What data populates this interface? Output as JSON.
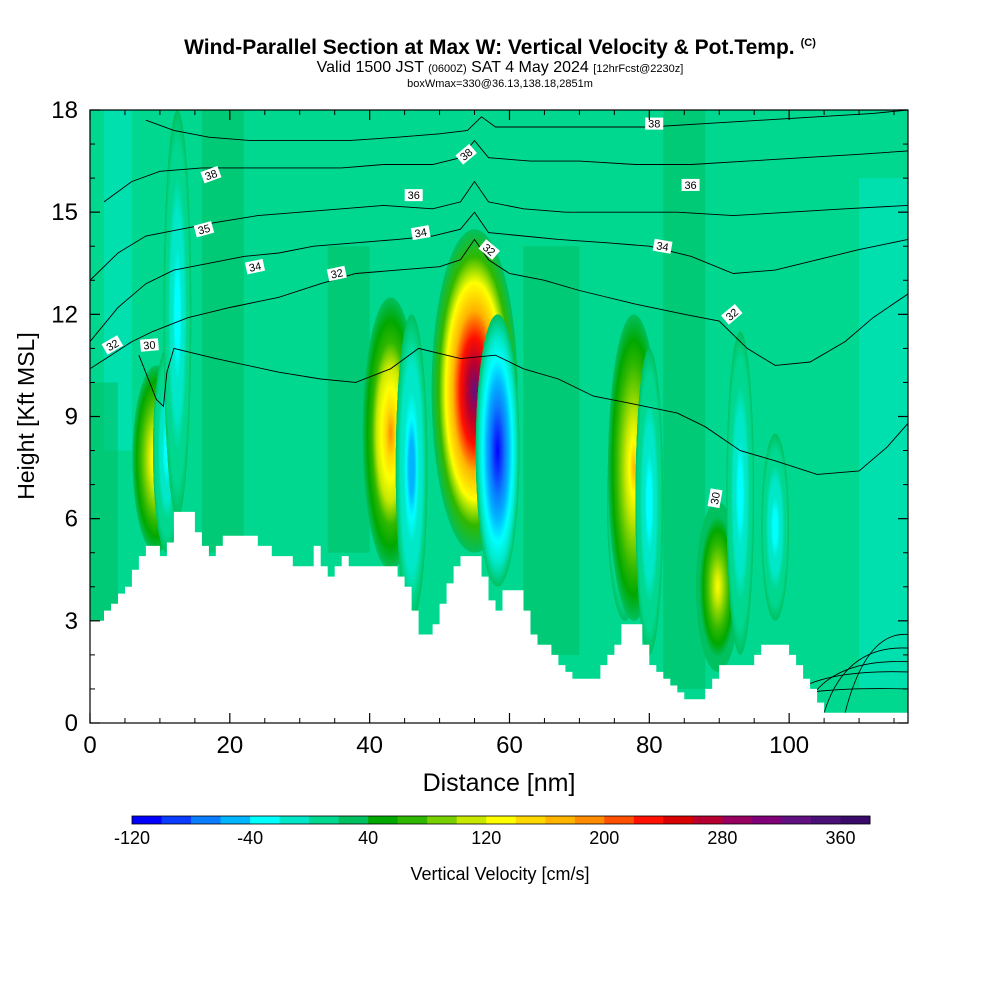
{
  "header": {
    "title": "Wind-Parallel Section at Max W: Vertical Velocity & Pot.Temp.",
    "copyright": "(C)",
    "valid_prefix": "Valid 1500 JST",
    "valid_utc": "(0600Z)",
    "valid_date": "SAT 4 May 2024",
    "forecast": "[12hrFcst@2230z]",
    "box_info": "boxWmax=330@36.13,138.18,2851m"
  },
  "chart_data": {
    "type": "heatmap",
    "xlabel": "Distance [nm]",
    "ylabel": "Height [Kft MSL]",
    "xlim": [
      0,
      117
    ],
    "ylim": [
      0,
      18
    ],
    "x_ticks": [
      0,
      20,
      40,
      60,
      80,
      100
    ],
    "y_ticks": [
      0,
      3,
      6,
      9,
      12,
      15,
      18
    ],
    "colorbar": {
      "label": "Vertical Velocity [cm/s]",
      "min": -120,
      "max": 380,
      "step": 20,
      "tick_labels": [
        -120,
        -40,
        40,
        120,
        200,
        280,
        360
      ],
      "colors": [
        "#0000ff",
        "#0a3cff",
        "#0a7cff",
        "#00b4ff",
        "#00ffff",
        "#00e8c8",
        "#00d890",
        "#00c060",
        "#00a800",
        "#30b800",
        "#78d000",
        "#c8e800",
        "#ffff00",
        "#ffd800",
        "#ffb400",
        "#ff8c00",
        "#ff5000",
        "#ff1000",
        "#d80000",
        "#b80030",
        "#980060",
        "#800078",
        "#601080",
        "#4a1078",
        "#3a0a6a"
      ]
    },
    "vertical_velocity_cells": [
      {
        "x": 9.5,
        "y_bottom": 5,
        "y_top": 10.5,
        "w_max": 140
      },
      {
        "x": 11,
        "y_bottom": 5,
        "y_top": 11,
        "w_max": -40
      },
      {
        "x": 43,
        "y_bottom": 4.5,
        "y_top": 12.5,
        "w_max": 180
      },
      {
        "x": 46,
        "y_bottom": 3,
        "y_top": 12,
        "w_max": -60
      },
      {
        "x": 55,
        "y_bottom": 5,
        "y_top": 14.5,
        "w_max": 330
      },
      {
        "x": 58.3,
        "y_bottom": 4,
        "y_top": 12,
        "w_max": -120
      },
      {
        "x": 76.5,
        "y_bottom": 3,
        "y_top": 10,
        "w_max": -80
      },
      {
        "x": 77.8,
        "y_bottom": 3,
        "y_top": 12,
        "w_max": 160
      },
      {
        "x": 80,
        "y_bottom": 2,
        "y_top": 11,
        "w_max": -40
      },
      {
        "x": 89.8,
        "y_bottom": 1.5,
        "y_top": 6.5,
        "w_max": 120
      },
      {
        "x": 93,
        "y_bottom": 2,
        "y_top": 11.5,
        "w_max": -40
      },
      {
        "x": 98,
        "y_bottom": 3,
        "y_top": 8.5,
        "w_max": -40
      },
      {
        "x": 12.5,
        "y_bottom": 6,
        "y_top": 18,
        "w_max": -40
      }
    ],
    "terrain": [
      [
        0,
        3
      ],
      [
        1,
        3
      ],
      [
        2,
        3.3
      ],
      [
        3,
        3.5
      ],
      [
        4,
        3.8
      ],
      [
        5,
        4
      ],
      [
        6,
        4.5
      ],
      [
        7,
        4.9
      ],
      [
        8,
        5.2
      ],
      [
        9,
        5.2
      ],
      [
        10,
        4.9
      ],
      [
        11,
        5.3
      ],
      [
        12,
        6.2
      ],
      [
        14,
        6.2
      ],
      [
        15,
        5.6
      ],
      [
        16,
        5.2
      ],
      [
        17,
        4.9
      ],
      [
        18,
        5.2
      ],
      [
        19,
        5.5
      ],
      [
        20,
        5.5
      ],
      [
        21,
        5.5
      ],
      [
        22,
        5.5
      ],
      [
        24,
        5.2
      ],
      [
        25,
        5.2
      ],
      [
        26,
        4.9
      ],
      [
        28,
        4.9
      ],
      [
        29,
        4.6
      ],
      [
        31,
        4.6
      ],
      [
        32,
        5.2
      ],
      [
        33,
        4.6
      ],
      [
        34,
        4.3
      ],
      [
        35,
        4.6
      ],
      [
        36,
        4.9
      ],
      [
        37,
        4.6
      ],
      [
        38,
        4.6
      ],
      [
        39,
        4.6
      ],
      [
        40,
        4.6
      ],
      [
        41,
        4.6
      ],
      [
        42,
        4.6
      ],
      [
        43,
        4.6
      ],
      [
        44,
        4.3
      ],
      [
        45,
        4
      ],
      [
        46,
        3.3
      ],
      [
        47,
        2.6
      ],
      [
        48,
        2.6
      ],
      [
        49,
        2.9
      ],
      [
        50,
        3.5
      ],
      [
        51,
        4.1
      ],
      [
        52,
        4.6
      ],
      [
        53,
        4.9
      ],
      [
        55,
        4.9
      ],
      [
        56,
        4.3
      ],
      [
        57,
        3.6
      ],
      [
        58,
        3.3
      ],
      [
        59,
        3.9
      ],
      [
        61,
        3.9
      ],
      [
        62,
        3.3
      ],
      [
        63,
        2.6
      ],
      [
        64,
        2.3
      ],
      [
        65,
        2.3
      ],
      [
        66,
        2
      ],
      [
        67,
        1.7
      ],
      [
        68,
        1.5
      ],
      [
        69,
        1.3
      ],
      [
        70,
        1.3
      ],
      [
        72,
        1.3
      ],
      [
        73,
        1.7
      ],
      [
        74,
        2
      ],
      [
        75,
        2.3
      ],
      [
        76,
        2.9
      ],
      [
        78,
        2.9
      ],
      [
        79,
        2.3
      ],
      [
        80,
        1.7
      ],
      [
        81,
        1.5
      ],
      [
        82,
        1.3
      ],
      [
        83,
        1.1
      ],
      [
        84,
        0.9
      ],
      [
        85,
        0.7
      ],
      [
        86,
        0.7
      ],
      [
        87,
        0.7
      ],
      [
        88,
        1.0
      ],
      [
        89,
        1.3
      ],
      [
        90,
        1.7
      ],
      [
        91,
        1.7
      ],
      [
        92,
        1.7
      ],
      [
        93,
        1.7
      ],
      [
        94,
        1.7
      ],
      [
        95,
        2
      ],
      [
        96,
        2.3
      ],
      [
        99,
        2.3
      ],
      [
        100,
        2
      ],
      [
        101,
        1.7
      ],
      [
        102,
        1.3
      ],
      [
        103,
        1
      ],
      [
        104,
        0.6
      ],
      [
        105,
        0.3
      ],
      [
        117,
        0.3
      ]
    ],
    "theta_contours": [
      {
        "label": "30",
        "points": [
          [
            7,
            10.8
          ],
          [
            9.5,
            9.5
          ],
          [
            10.5,
            9.3
          ],
          [
            11,
            10.3
          ],
          [
            12,
            11
          ],
          [
            18,
            10.7
          ],
          [
            27,
            10.3
          ],
          [
            33,
            10.1
          ],
          [
            38,
            10
          ],
          [
            43,
            10.4
          ],
          [
            47,
            11
          ],
          [
            53,
            10.7
          ],
          [
            58,
            10.8
          ],
          [
            62,
            10.4
          ],
          [
            67,
            10.1
          ],
          [
            72,
            9.6
          ],
          [
            77,
            9.4
          ],
          [
            84,
            9.1
          ],
          [
            88,
            8.7
          ],
          [
            93,
            8
          ],
          [
            98,
            7.7
          ],
          [
            104,
            7.3
          ],
          [
            110,
            7.4
          ],
          [
            114,
            8.1
          ],
          [
            117,
            8.8
          ]
        ]
      },
      {
        "label": "32",
        "points": [
          [
            0,
            10.4
          ],
          [
            3,
            10.8
          ],
          [
            6,
            11.2
          ],
          [
            9,
            11.5
          ],
          [
            14,
            11.9
          ],
          [
            20,
            12.2
          ],
          [
            27,
            12.5
          ],
          [
            33,
            12.9
          ],
          [
            38,
            13.2
          ],
          [
            44,
            13.3
          ],
          [
            50,
            13.4
          ],
          [
            53,
            13.6
          ],
          [
            55,
            14.2
          ],
          [
            57,
            13.6
          ],
          [
            60,
            13.2
          ],
          [
            65,
            13
          ],
          [
            70,
            12.7
          ],
          [
            78,
            12.3
          ],
          [
            85,
            12
          ],
          [
            90,
            11.8
          ],
          [
            94,
            11
          ],
          [
            98,
            10.5
          ],
          [
            103,
            10.6
          ],
          [
            108,
            11.2
          ],
          [
            112,
            11.9
          ],
          [
            117,
            12.6
          ]
        ]
      },
      {
        "label": "34",
        "points": [
          [
            0,
            11.2
          ],
          [
            4,
            12.2
          ],
          [
            8,
            12.9
          ],
          [
            12,
            13.3
          ],
          [
            17,
            13.5
          ],
          [
            22,
            13.7
          ],
          [
            27,
            13.8
          ],
          [
            32,
            14
          ],
          [
            38,
            14.1
          ],
          [
            44,
            14.2
          ],
          [
            49,
            14.3
          ],
          [
            53,
            14.5
          ],
          [
            55,
            15
          ],
          [
            57,
            14.4
          ],
          [
            62,
            14.3
          ],
          [
            67,
            14.2
          ],
          [
            74,
            14.1
          ],
          [
            80,
            14
          ],
          [
            86,
            13.7
          ],
          [
            92,
            13.2
          ],
          [
            98,
            13.3
          ],
          [
            104,
            13.6
          ],
          [
            110,
            13.9
          ],
          [
            117,
            14.2
          ]
        ]
      },
      {
        "label": "35",
        "points": [
          [
            0,
            13
          ],
          [
            4,
            13.8
          ],
          [
            8,
            14.3
          ],
          [
            13,
            14.5
          ],
          [
            18,
            14.7
          ],
          [
            24,
            14.9
          ],
          [
            30,
            15
          ],
          [
            36,
            15.1
          ],
          [
            42,
            15.2
          ],
          [
            49,
            15.1
          ],
          [
            53,
            15.3
          ],
          [
            55,
            15.9
          ],
          [
            57,
            15.3
          ],
          [
            62,
            15.1
          ],
          [
            68,
            15
          ],
          [
            76,
            15
          ],
          [
            84,
            15
          ],
          [
            92,
            14.9
          ],
          [
            100,
            15
          ],
          [
            108,
            15.1
          ],
          [
            117,
            15.2
          ]
        ]
      },
      {
        "label": "36",
        "points": [
          [
            2,
            15.3
          ],
          [
            6,
            15.9
          ],
          [
            10,
            16.2
          ],
          [
            16,
            16.3
          ],
          [
            22,
            16.3
          ],
          [
            29,
            16.3
          ],
          [
            36,
            16.3
          ],
          [
            42,
            16.4
          ],
          [
            49,
            16.4
          ],
          [
            53,
            16.6
          ],
          [
            55,
            17.1
          ],
          [
            57,
            16.6
          ],
          [
            63,
            16.5
          ],
          [
            70,
            16.5
          ],
          [
            78,
            16.4
          ],
          [
            86,
            16.4
          ],
          [
            94,
            16.5
          ],
          [
            102,
            16.6
          ],
          [
            110,
            16.7
          ],
          [
            117,
            16.8
          ]
        ]
      },
      {
        "label": "38",
        "points": [
          [
            8,
            17.7
          ],
          [
            12,
            17.4
          ],
          [
            17,
            17.2
          ],
          [
            23,
            17.1
          ],
          [
            30,
            17.1
          ],
          [
            37,
            17.1
          ],
          [
            44,
            17.2
          ],
          [
            50,
            17.3
          ],
          [
            54,
            17.4
          ],
          [
            56,
            17.8
          ],
          [
            58,
            17.5
          ],
          [
            64,
            17.5
          ],
          [
            72,
            17.5
          ],
          [
            80,
            17.5
          ],
          [
            88,
            17.6
          ],
          [
            96,
            17.7
          ],
          [
            104,
            17.8
          ],
          [
            112,
            17.9
          ],
          [
            117,
            18
          ]
        ]
      }
    ],
    "contour_labels": [
      {
        "text": "32",
        "x": 3.2,
        "y": 11.1,
        "angle": -30
      },
      {
        "text": "30",
        "x": 8.5,
        "y": 11.1,
        "angle": -5
      },
      {
        "text": "38",
        "x": 17.3,
        "y": 16.1,
        "angle": -20
      },
      {
        "text": "35",
        "x": 16.3,
        "y": 14.5,
        "angle": -15
      },
      {
        "text": "34",
        "x": 23.6,
        "y": 13.4,
        "angle": -12
      },
      {
        "text": "32",
        "x": 35.3,
        "y": 13.2,
        "angle": -12
      },
      {
        "text": "36",
        "x": 46.3,
        "y": 15.5,
        "angle": 0
      },
      {
        "text": "34",
        "x": 47.3,
        "y": 14.4,
        "angle": -10
      },
      {
        "text": "38",
        "x": 53.8,
        "y": 16.7,
        "angle": -40
      },
      {
        "text": "32",
        "x": 57.1,
        "y": 13.9,
        "angle": 40
      },
      {
        "text": "38",
        "x": 80.7,
        "y": 17.6,
        "angle": 0
      },
      {
        "text": "36",
        "x": 85.9,
        "y": 15.8,
        "angle": 0
      },
      {
        "text": "34",
        "x": 81.9,
        "y": 14,
        "angle": 10
      },
      {
        "text": "32",
        "x": 91.8,
        "y": 12,
        "angle": -40
      },
      {
        "text": "30",
        "x": 89.4,
        "y": 6.6,
        "angle": -80
      }
    ]
  }
}
